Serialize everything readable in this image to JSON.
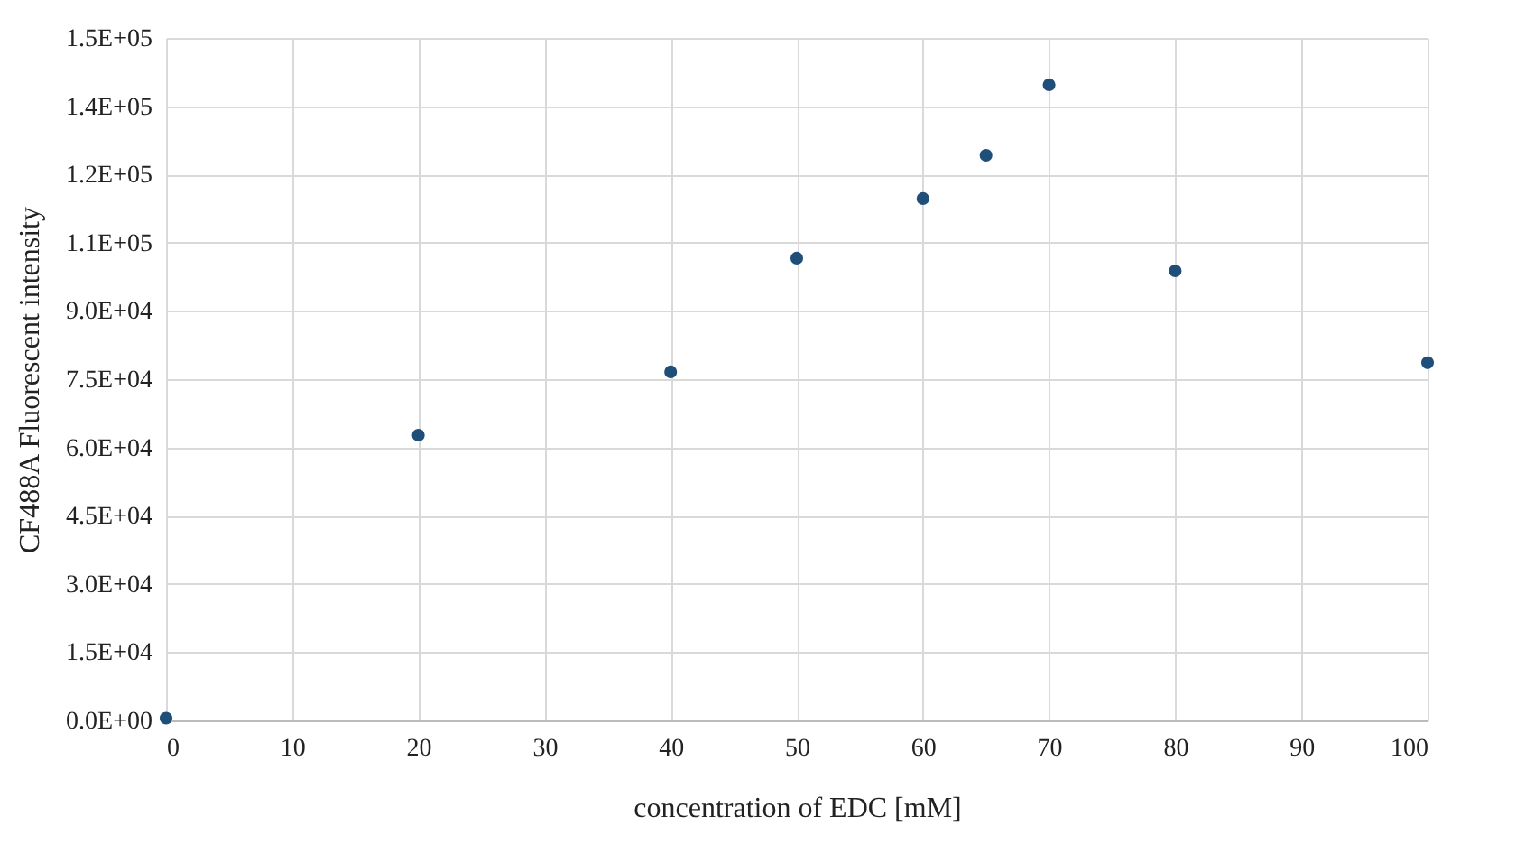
{
  "chart_data": {
    "type": "scatter",
    "xlabel": "concentration of EDC [mM]",
    "ylabel": "CF488A Fluorescent intensity",
    "x": [
      0,
      20,
      40,
      50,
      60,
      65,
      70,
      80,
      100
    ],
    "series": [
      {
        "color": "#1f4e79",
        "values": [
          500,
          62700,
          76600,
          101600,
          114700,
          124200,
          139700,
          98800,
          78600
        ]
      }
    ],
    "xlim": [
      0,
      100
    ],
    "xticks": [
      0,
      10,
      20,
      30,
      40,
      50,
      60,
      70,
      80,
      90,
      100
    ],
    "ylim": [
      0,
      150000
    ],
    "yticks": [
      {
        "value": 0,
        "label": "0.0E+00"
      },
      {
        "value": 15000,
        "label": "1.5E+04"
      },
      {
        "value": 30000,
        "label": "3.0E+04"
      },
      {
        "value": 45000,
        "label": "4.5E+04"
      },
      {
        "value": 60000,
        "label": "6.0E+04"
      },
      {
        "value": 75000,
        "label": "7.5E+04"
      },
      {
        "value": 90000,
        "label": "9.0E+04"
      },
      {
        "value": 105000,
        "label": "1.1E+05"
      },
      {
        "value": 120000,
        "label": "1.2E+05"
      },
      {
        "value": 135000,
        "label": "1.4E+05"
      },
      {
        "value": 150000,
        "label": "1.5E+05"
      }
    ],
    "grid": true,
    "marker": "circle"
  }
}
